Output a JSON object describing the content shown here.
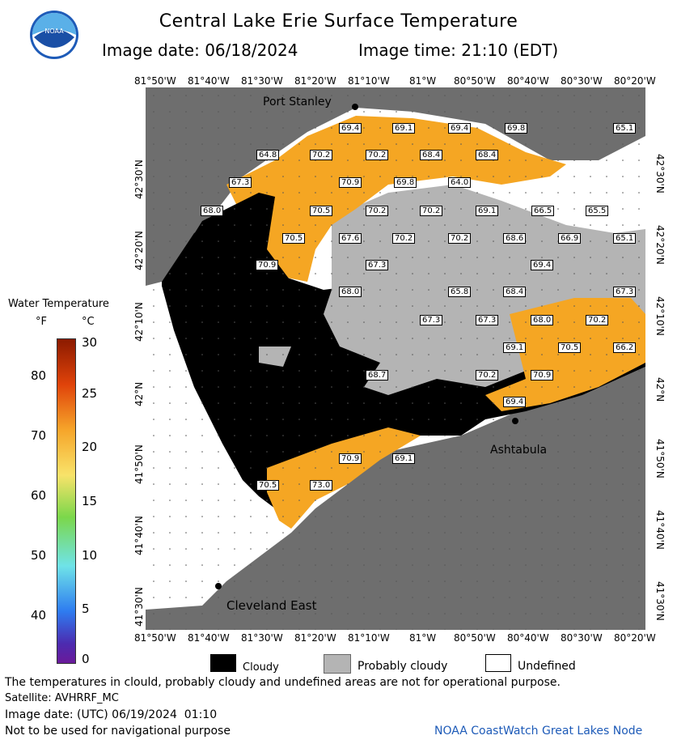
{
  "header": {
    "title": "Central Lake Erie Surface Temperature",
    "image_date": "Image date: 06/18/2024",
    "image_time": "Image time: 21:10 (EDT)"
  },
  "map": {
    "lon_labels": [
      "81°50'W",
      "81°40'W",
      "81°30'W",
      "81°20'W",
      "81°10'W",
      "81°W",
      "80°50'W",
      "80°40'W",
      "80°30'W",
      "80°20'W"
    ],
    "lat_labels": [
      "42°30'N",
      "42°20'N",
      "42°10'N",
      "42°N",
      "41°50'N",
      "41°40'N",
      "41°30'N"
    ],
    "places": {
      "port_stanley": "Port Stanley",
      "ashtabula": "Ashtabula",
      "cleveland_east": "Cleveland East"
    },
    "temperatures": [
      "69.4",
      "69.1",
      "69.4",
      "69.8",
      "65.1",
      "64.8",
      "70.2",
      "70.2",
      "68.4",
      "68.4",
      "67.3",
      "70.9",
      "69.8",
      "64.0",
      "68.0",
      "70.5",
      "70.2",
      "70.2",
      "69.1",
      "66.5",
      "65.5",
      "70.5",
      "67.6",
      "70.2",
      "70.2",
      "68.6",
      "66.9",
      "65.1",
      "70.9",
      "67.3",
      "69.4",
      "68.0",
      "65.8",
      "68.4",
      "67.3",
      "67.3",
      "67.3",
      "68.0",
      "70.2",
      "69.1",
      "70.5",
      "66.2",
      "68.7",
      "70.2",
      "70.9",
      "69.4",
      "70.9",
      "69.1",
      "73.0",
      "70.5"
    ],
    "colors": {
      "land": "#6e6e6e",
      "cloudy": "#000000",
      "probably_cloudy": "#b4b4b4",
      "undefined": "#ffffff",
      "warm": "#f5a623"
    }
  },
  "scale": {
    "title": "Water Temperature",
    "unit_f": "°F",
    "unit_c": "°C",
    "f_ticks": [
      "80",
      "70",
      "60",
      "50",
      "40"
    ],
    "c_ticks": [
      "30",
      "25",
      "20",
      "15",
      "10",
      "5",
      "0"
    ]
  },
  "legend": {
    "cloudy": "Cloudy",
    "probably_cloudy": "Probably cloudy",
    "undefined": "Undefined"
  },
  "footer": {
    "note": "The temperatures in clould, probably cloudy and undefined areas are not for operational purpose.",
    "satellite": "Satellite: AVHRRF_MC",
    "utc_date": "Image date: (UTC) 06/19/2024  01:10",
    "nav_note": "Not to be used for navigational purpose",
    "credit": "NOAA CoastWatch Great Lakes Node"
  },
  "logo": {
    "text": "NOAA"
  }
}
